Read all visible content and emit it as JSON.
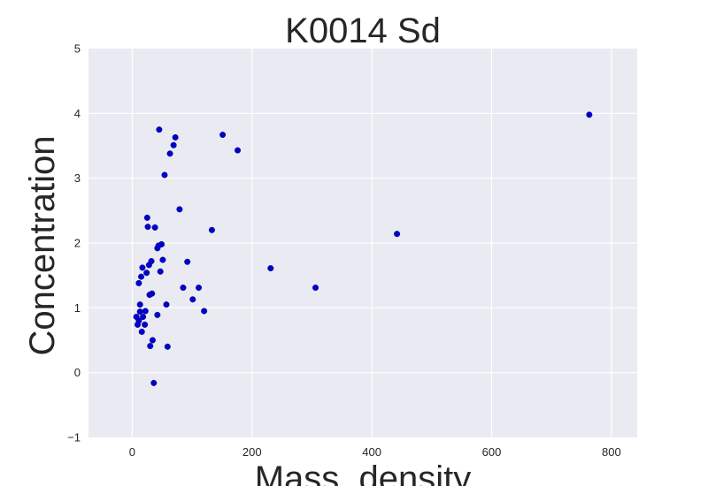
{
  "chart_data": {
    "type": "scatter",
    "title": "K0014 Sd",
    "xlabel": "Mass  density",
    "ylabel": "Concentration",
    "xlim": [
      -73,
      843
    ],
    "ylim": [
      -1,
      5
    ],
    "x_ticks": [
      0,
      200,
      400,
      600,
      800
    ],
    "y_ticks": [
      -1,
      0,
      1,
      2,
      3,
      4,
      5
    ],
    "x_tick_labels": [
      "0",
      "200",
      "400",
      "600",
      "800"
    ],
    "y_tick_labels": [
      "−1",
      "0",
      "1",
      "2",
      "3",
      "4",
      "5"
    ],
    "grid": true,
    "colors": {
      "plot_background": "#eaeaf2",
      "grid": "#ffffff",
      "point": "#0000cc",
      "text": "#262626"
    },
    "series": [
      {
        "points": [
          {
            "x": 763,
            "y": 3.98
          },
          {
            "x": 442,
            "y": 2.14
          },
          {
            "x": 306,
            "y": 1.31
          },
          {
            "x": 231,
            "y": 1.61
          },
          {
            "x": 176,
            "y": 3.43
          },
          {
            "x": 151,
            "y": 3.67
          },
          {
            "x": 133,
            "y": 2.2
          },
          {
            "x": 120,
            "y": 0.95
          },
          {
            "x": 111,
            "y": 1.31
          },
          {
            "x": 101,
            "y": 1.13
          },
          {
            "x": 92,
            "y": 1.71
          },
          {
            "x": 85,
            "y": 1.31
          },
          {
            "x": 79,
            "y": 2.52
          },
          {
            "x": 72,
            "y": 3.63
          },
          {
            "x": 69,
            "y": 3.51
          },
          {
            "x": 63,
            "y": 3.38
          },
          {
            "x": 59,
            "y": 0.4
          },
          {
            "x": 57,
            "y": 1.05
          },
          {
            "x": 54,
            "y": 3.05
          },
          {
            "x": 51,
            "y": 1.74
          },
          {
            "x": 49,
            "y": 1.98
          },
          {
            "x": 47,
            "y": 1.56
          },
          {
            "x": 45,
            "y": 3.75
          },
          {
            "x": 44,
            "y": 1.96
          },
          {
            "x": 42,
            "y": 1.92
          },
          {
            "x": 42,
            "y": 0.89
          },
          {
            "x": 38,
            "y": 2.24
          },
          {
            "x": 36,
            "y": -0.16
          },
          {
            "x": 34,
            "y": 0.5
          },
          {
            "x": 33,
            "y": 1.22
          },
          {
            "x": 32,
            "y": 1.72
          },
          {
            "x": 30,
            "y": 0.41
          },
          {
            "x": 29,
            "y": 1.2
          },
          {
            "x": 28,
            "y": 1.66
          },
          {
            "x": 26,
            "y": 2.25
          },
          {
            "x": 25,
            "y": 2.39
          },
          {
            "x": 24,
            "y": 1.54
          },
          {
            "x": 22,
            "y": 0.95
          },
          {
            "x": 21,
            "y": 0.74
          },
          {
            "x": 17,
            "y": 1.62
          },
          {
            "x": 18,
            "y": 0.86
          },
          {
            "x": 16,
            "y": 0.63
          },
          {
            "x": 15,
            "y": 1.48
          },
          {
            "x": 13,
            "y": 1.05
          },
          {
            "x": 13,
            "y": 0.94
          },
          {
            "x": 11,
            "y": 1.38
          },
          {
            "x": 11,
            "y": 0.8
          },
          {
            "x": 9,
            "y": 0.74
          },
          {
            "x": 7,
            "y": 0.86
          }
        ]
      }
    ]
  }
}
